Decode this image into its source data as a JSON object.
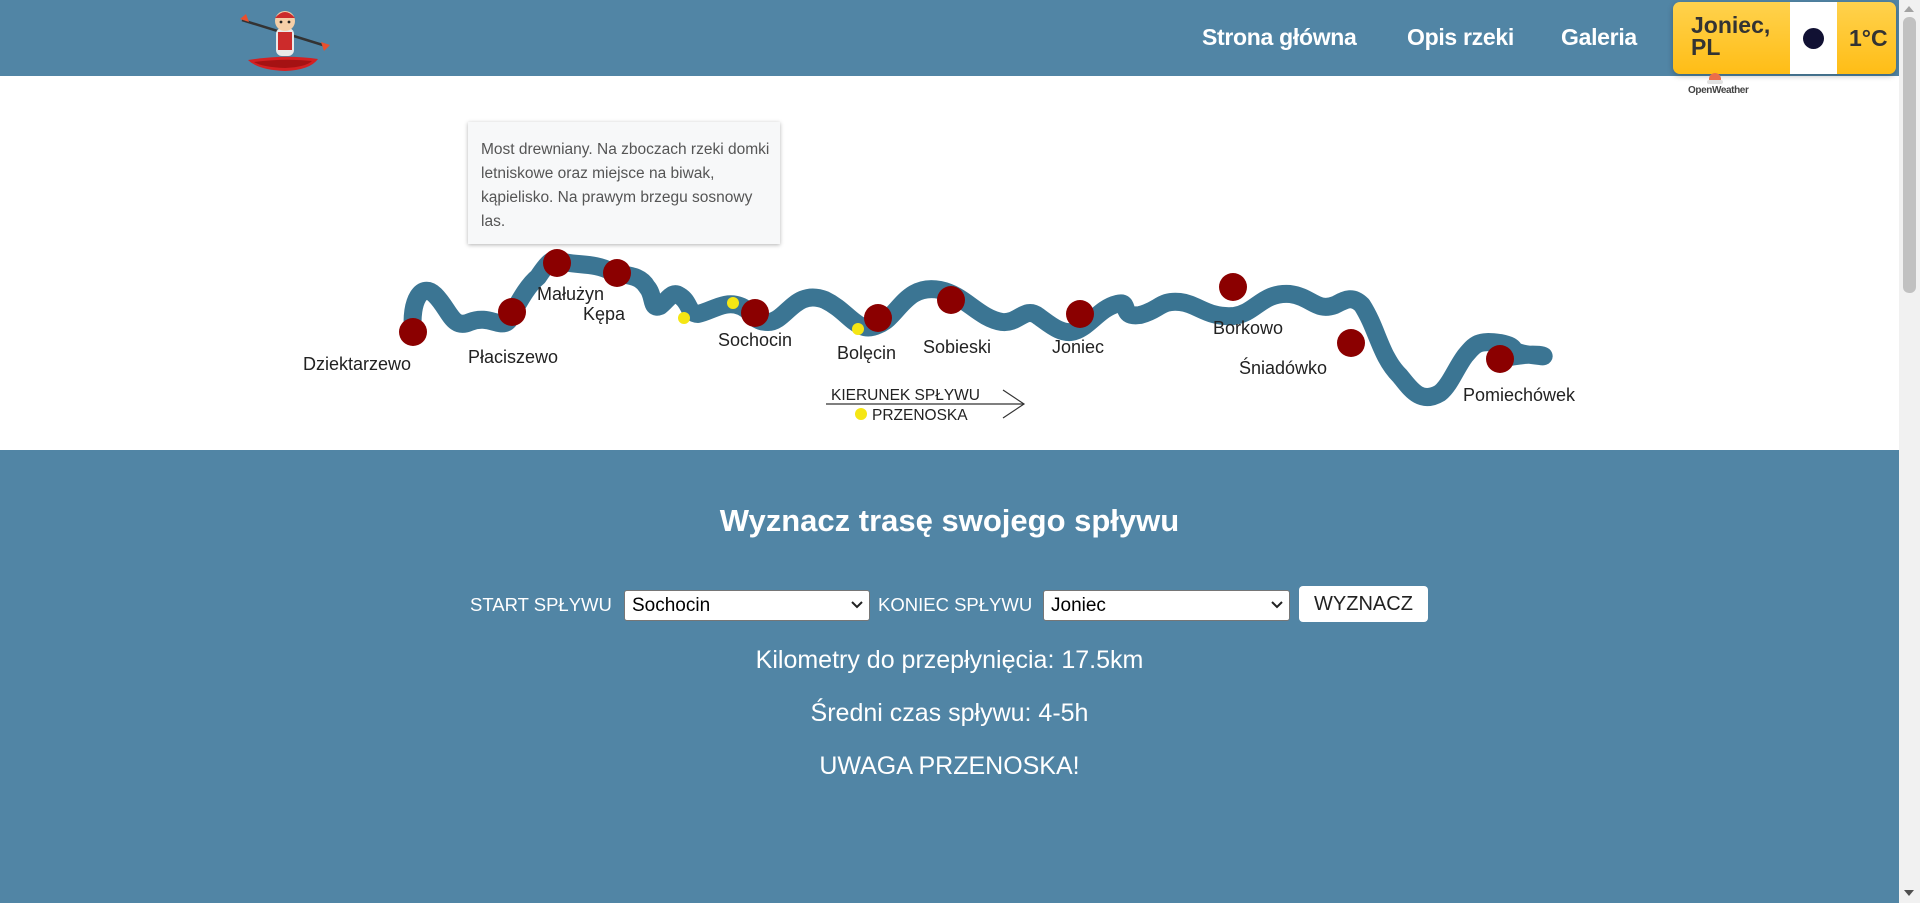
{
  "nav": {
    "links": [
      "Strona główna",
      "Opis rzeki",
      "Galeria"
    ]
  },
  "weather": {
    "location": "Joniec, PL",
    "temperature": "1°C",
    "condition_icon": "moon-icon",
    "provider": "OpenWeather"
  },
  "map": {
    "tooltip": "Most drewniany. Na zboczach rzeki domki letniskowe oraz miejsce na biwak, kąpielisko. Na prawym brzegu sosnowy las.",
    "places": [
      "Dziektarzewo",
      "Płaciszewo",
      "Małużyn",
      "Kępa",
      "Sochocin",
      "Bolęcin",
      "Sobieski",
      "Joniec",
      "Borkowo",
      "Śniadówko",
      "Pomiechówek"
    ],
    "direction_label": "KIERUNEK SPŁYWU",
    "portage_label": "PRZENOSKA"
  },
  "route": {
    "title": "Wyznacz trasę swojego spływu",
    "start_label": "START SPŁYWU",
    "start_value": "Sochocin",
    "end_label": "KONIEC SPŁYWU",
    "end_value": "Joniec",
    "button": "WYZNACZ",
    "distance": "Kilometry do przepłynięcia: 17.5km",
    "time": "Średni czas spływu: 4-5h",
    "warning": "UWAGA PRZENOSKA!"
  },
  "colors": {
    "header": "#5185a5",
    "river": "#3b7593",
    "stop": "#8b0000",
    "portage": "#f5e614",
    "weather_bg": "#ffc72c"
  }
}
